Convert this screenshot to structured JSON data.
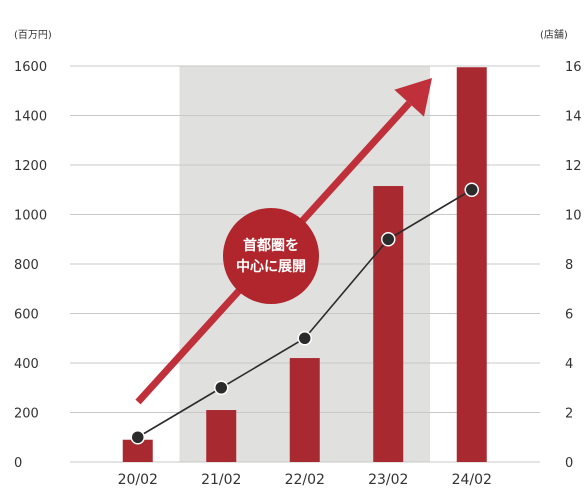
{
  "chart_data": {
    "type": "bar",
    "categories": [
      "20/02",
      "21/02",
      "22/02",
      "23/02",
      "24/02"
    ],
    "series": [
      {
        "values": [
          90,
          210,
          420,
          1115,
          1595
        ],
        "axis": "left",
        "kind": "bar"
      },
      {
        "values": [
          1,
          3,
          5,
          9,
          11
        ],
        "axis": "right",
        "kind": "line"
      }
    ],
    "left_axis": {
      "unit_label": "(百万円)",
      "ylim": [
        0,
        1600
      ],
      "ticks": [
        "0",
        "200",
        "400",
        "600",
        "800",
        "1000",
        "1200",
        "1400",
        "1600"
      ]
    },
    "right_axis": {
      "unit_label": "(店舗)",
      "ylim": [
        0,
        16
      ],
      "ticks": [
        "0",
        "2",
        "4",
        "6",
        "8",
        "10",
        "12",
        "14",
        "16"
      ]
    },
    "annotation": {
      "line1": "首都圏を",
      "line2": "中心に展開"
    },
    "shaded_range": [
      "21/02",
      "23/02"
    ],
    "grid": true,
    "colors": {
      "bar": "#a8292f",
      "line": "#2b2b2b",
      "marker": "#2b2b2b",
      "arrow": "#c0303a",
      "circle": "#b0262c",
      "shade": "#e0e0de",
      "grid": "#c8c8c8",
      "text": "#333333"
    }
  }
}
